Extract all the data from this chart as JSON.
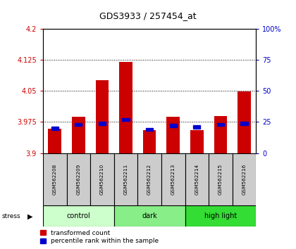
{
  "title": "GDS3933 / 257454_at",
  "samples": [
    "GSM562208",
    "GSM562209",
    "GSM562210",
    "GSM562211",
    "GSM562212",
    "GSM562213",
    "GSM562214",
    "GSM562215",
    "GSM562216"
  ],
  "red_values": [
    3.958,
    3.988,
    4.075,
    4.12,
    3.955,
    3.988,
    3.955,
    3.99,
    4.048
  ],
  "blue_values_pct": [
    20,
    23,
    24,
    27,
    19,
    22,
    21,
    23,
    24
  ],
  "y_min": 3.9,
  "y_max": 4.2,
  "y_ticks": [
    3.9,
    3.975,
    4.05,
    4.125,
    4.2
  ],
  "y_tick_labels": [
    "3.9",
    "3.975",
    "4.05",
    "4.125",
    "4.2"
  ],
  "right_y_ticks": [
    0,
    25,
    50,
    75,
    100
  ],
  "right_y_labels": [
    "0",
    "25",
    "50",
    "75",
    "100%"
  ],
  "groups": [
    {
      "label": "control",
      "indices": [
        0,
        1,
        2
      ],
      "color": "#ccffcc"
    },
    {
      "label": "dark",
      "indices": [
        3,
        4,
        5
      ],
      "color": "#88ee88"
    },
    {
      "label": "high light",
      "indices": [
        6,
        7,
        8
      ],
      "color": "#33dd33"
    }
  ],
  "left_axis_color": "#cc0000",
  "right_axis_color": "#0000cc",
  "bar_color_red": "#cc0000",
  "bar_color_blue": "#0000cc",
  "label_row_color": "#cccccc",
  "grid_yticks": [
    3.975,
    4.05,
    4.125
  ]
}
